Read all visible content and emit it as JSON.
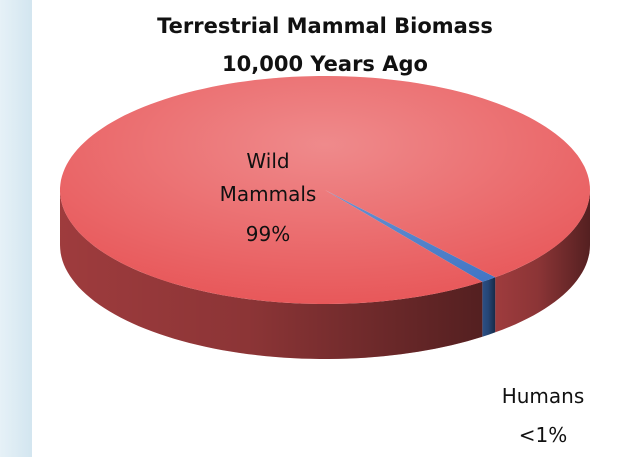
{
  "chart_data": {
    "type": "pie3d",
    "title": "Terrestrial Mammal Biomass",
    "subtitle": "10,000 Years Ago",
    "categories": [
      "Humans",
      "Wild Mammals"
    ],
    "values": [
      1,
      99
    ],
    "value_labels": [
      "<1%",
      "99%"
    ],
    "colors": [
      "#3f74c4",
      "#e8585a"
    ]
  }
}
